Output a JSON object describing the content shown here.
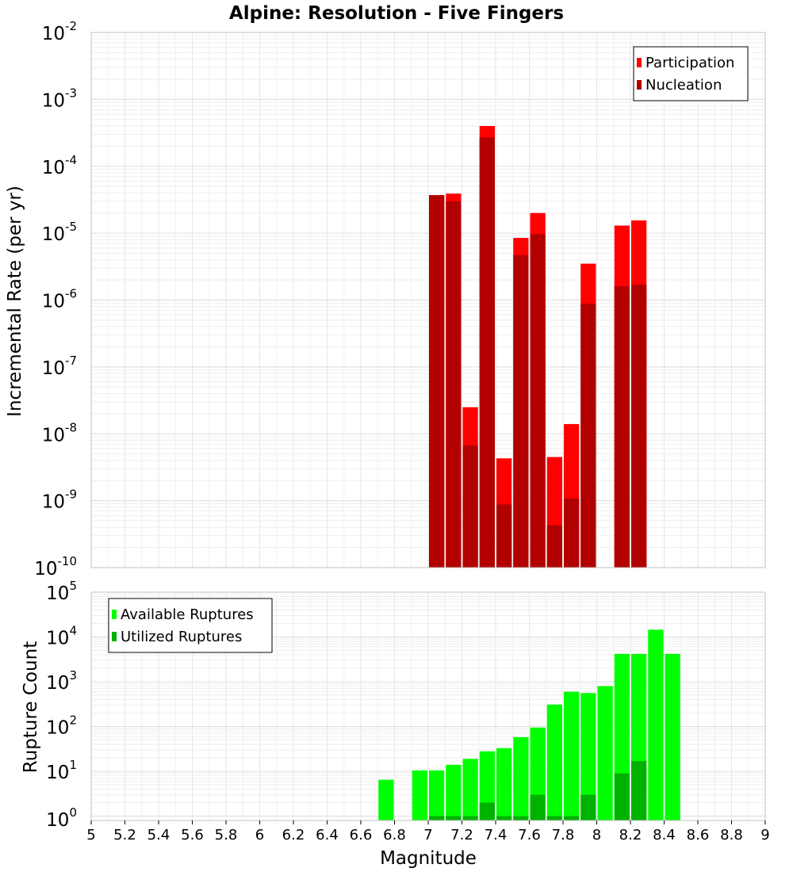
{
  "chart_data": [
    {
      "type": "bar",
      "title": "Alpine: Resolution - Five Fingers",
      "xlabel": "",
      "ylabel": "Incremental Rate (per yr)",
      "xlim": [
        5,
        9
      ],
      "ylim": [
        1e-10,
        0.01
      ],
      "yscale": "log",
      "grid": true,
      "legend_position": "top-right",
      "colors": {
        "Participation": "#ff0000",
        "Nucleation": "#b20000"
      },
      "x": [
        7.05,
        7.15,
        7.25,
        7.35,
        7.45,
        7.55,
        7.65,
        7.75,
        7.85,
        7.95,
        8.15,
        8.25
      ],
      "series": [
        {
          "name": "Participation",
          "values": [
            3.7e-05,
            3.9e-05,
            2.5e-08,
            0.0004,
            4.3e-09,
            8.5e-06,
            2e-05,
            4.5e-09,
            1.4e-08,
            3.5e-06,
            1.3e-05,
            1.55e-05
          ]
        },
        {
          "name": "Nucleation",
          "values": [
            3.7e-05,
            3e-05,
            6.7e-09,
            0.00027,
            8.8e-10,
            4.7e-06,
            9.7e-06,
            4.3e-10,
            1.08e-09,
            8.8e-07,
            1.6e-06,
            1.7e-06
          ]
        }
      ]
    },
    {
      "type": "bar",
      "title": "",
      "xlabel": "Magnitude",
      "ylabel": "Rupture Count",
      "xlim": [
        5,
        9
      ],
      "ylim": [
        0.8,
        100000.0
      ],
      "yscale": "log",
      "grid": true,
      "legend_position": "top-left",
      "colors": {
        "Available Ruptures": "#00ff00",
        "Utilized Ruptures": "#00b200"
      },
      "x_ticks": [
        "5",
        "5.2",
        "5.4",
        "5.6",
        "5.8",
        "6",
        "6.2",
        "6.4",
        "6.6",
        "6.8",
        "7",
        "7.2",
        "7.4",
        "7.6",
        "7.8",
        "8",
        "8.2",
        "8.4",
        "8.6",
        "8.8",
        "9"
      ],
      "x": [
        6.75,
        6.95,
        7.05,
        7.15,
        7.25,
        7.35,
        7.45,
        7.55,
        7.65,
        7.75,
        7.85,
        7.95,
        8.05,
        8.15,
        8.25,
        8.35,
        8.45
      ],
      "series": [
        {
          "name": "Available Ruptures",
          "values": [
            6.5,
            10.5,
            10.5,
            14,
            19,
            28,
            33,
            58,
            95,
            310,
            600,
            560,
            800,
            4200,
            4200,
            14500,
            4200
          ]
        },
        {
          "name": "Utilized Ruptures",
          "values": [
            0,
            0,
            1,
            1,
            1,
            2,
            1,
            1,
            3,
            1,
            1,
            3,
            0,
            9,
            17,
            0,
            0
          ]
        }
      ]
    }
  ]
}
